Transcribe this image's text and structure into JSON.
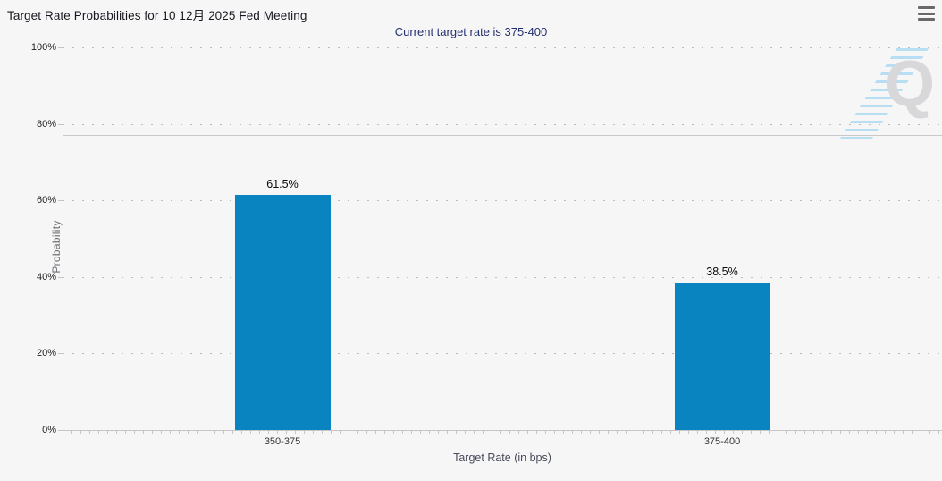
{
  "header": {
    "title": "Target Rate Probabilities for 10 12月 2025 Fed Meeting",
    "subtitle": "Current target rate is 375-400"
  },
  "watermark": {
    "letter": "Q"
  },
  "chart_data": {
    "type": "bar",
    "title": "Target Rate Probabilities for 10 12月 2025 Fed Meeting",
    "subtitle": "Current target rate is 375-400",
    "categories": [
      "350-375",
      "375-400"
    ],
    "values": [
      61.5,
      38.5
    ],
    "value_labels": [
      "61.5%",
      "38.5%"
    ],
    "xlabel": "Target Rate (in bps)",
    "ylabel": "Probability",
    "ylim": [
      0,
      100
    ],
    "y_tick_values": [
      0,
      20,
      40,
      60,
      80,
      100
    ],
    "y_tick_labels": [
      "0%",
      "20%",
      "40%",
      "60%",
      "80%",
      "100%"
    ],
    "grid": "horizontal dotted",
    "legend_position": "none",
    "reference_line_value": 77,
    "bar_color": "#0a84c1"
  }
}
